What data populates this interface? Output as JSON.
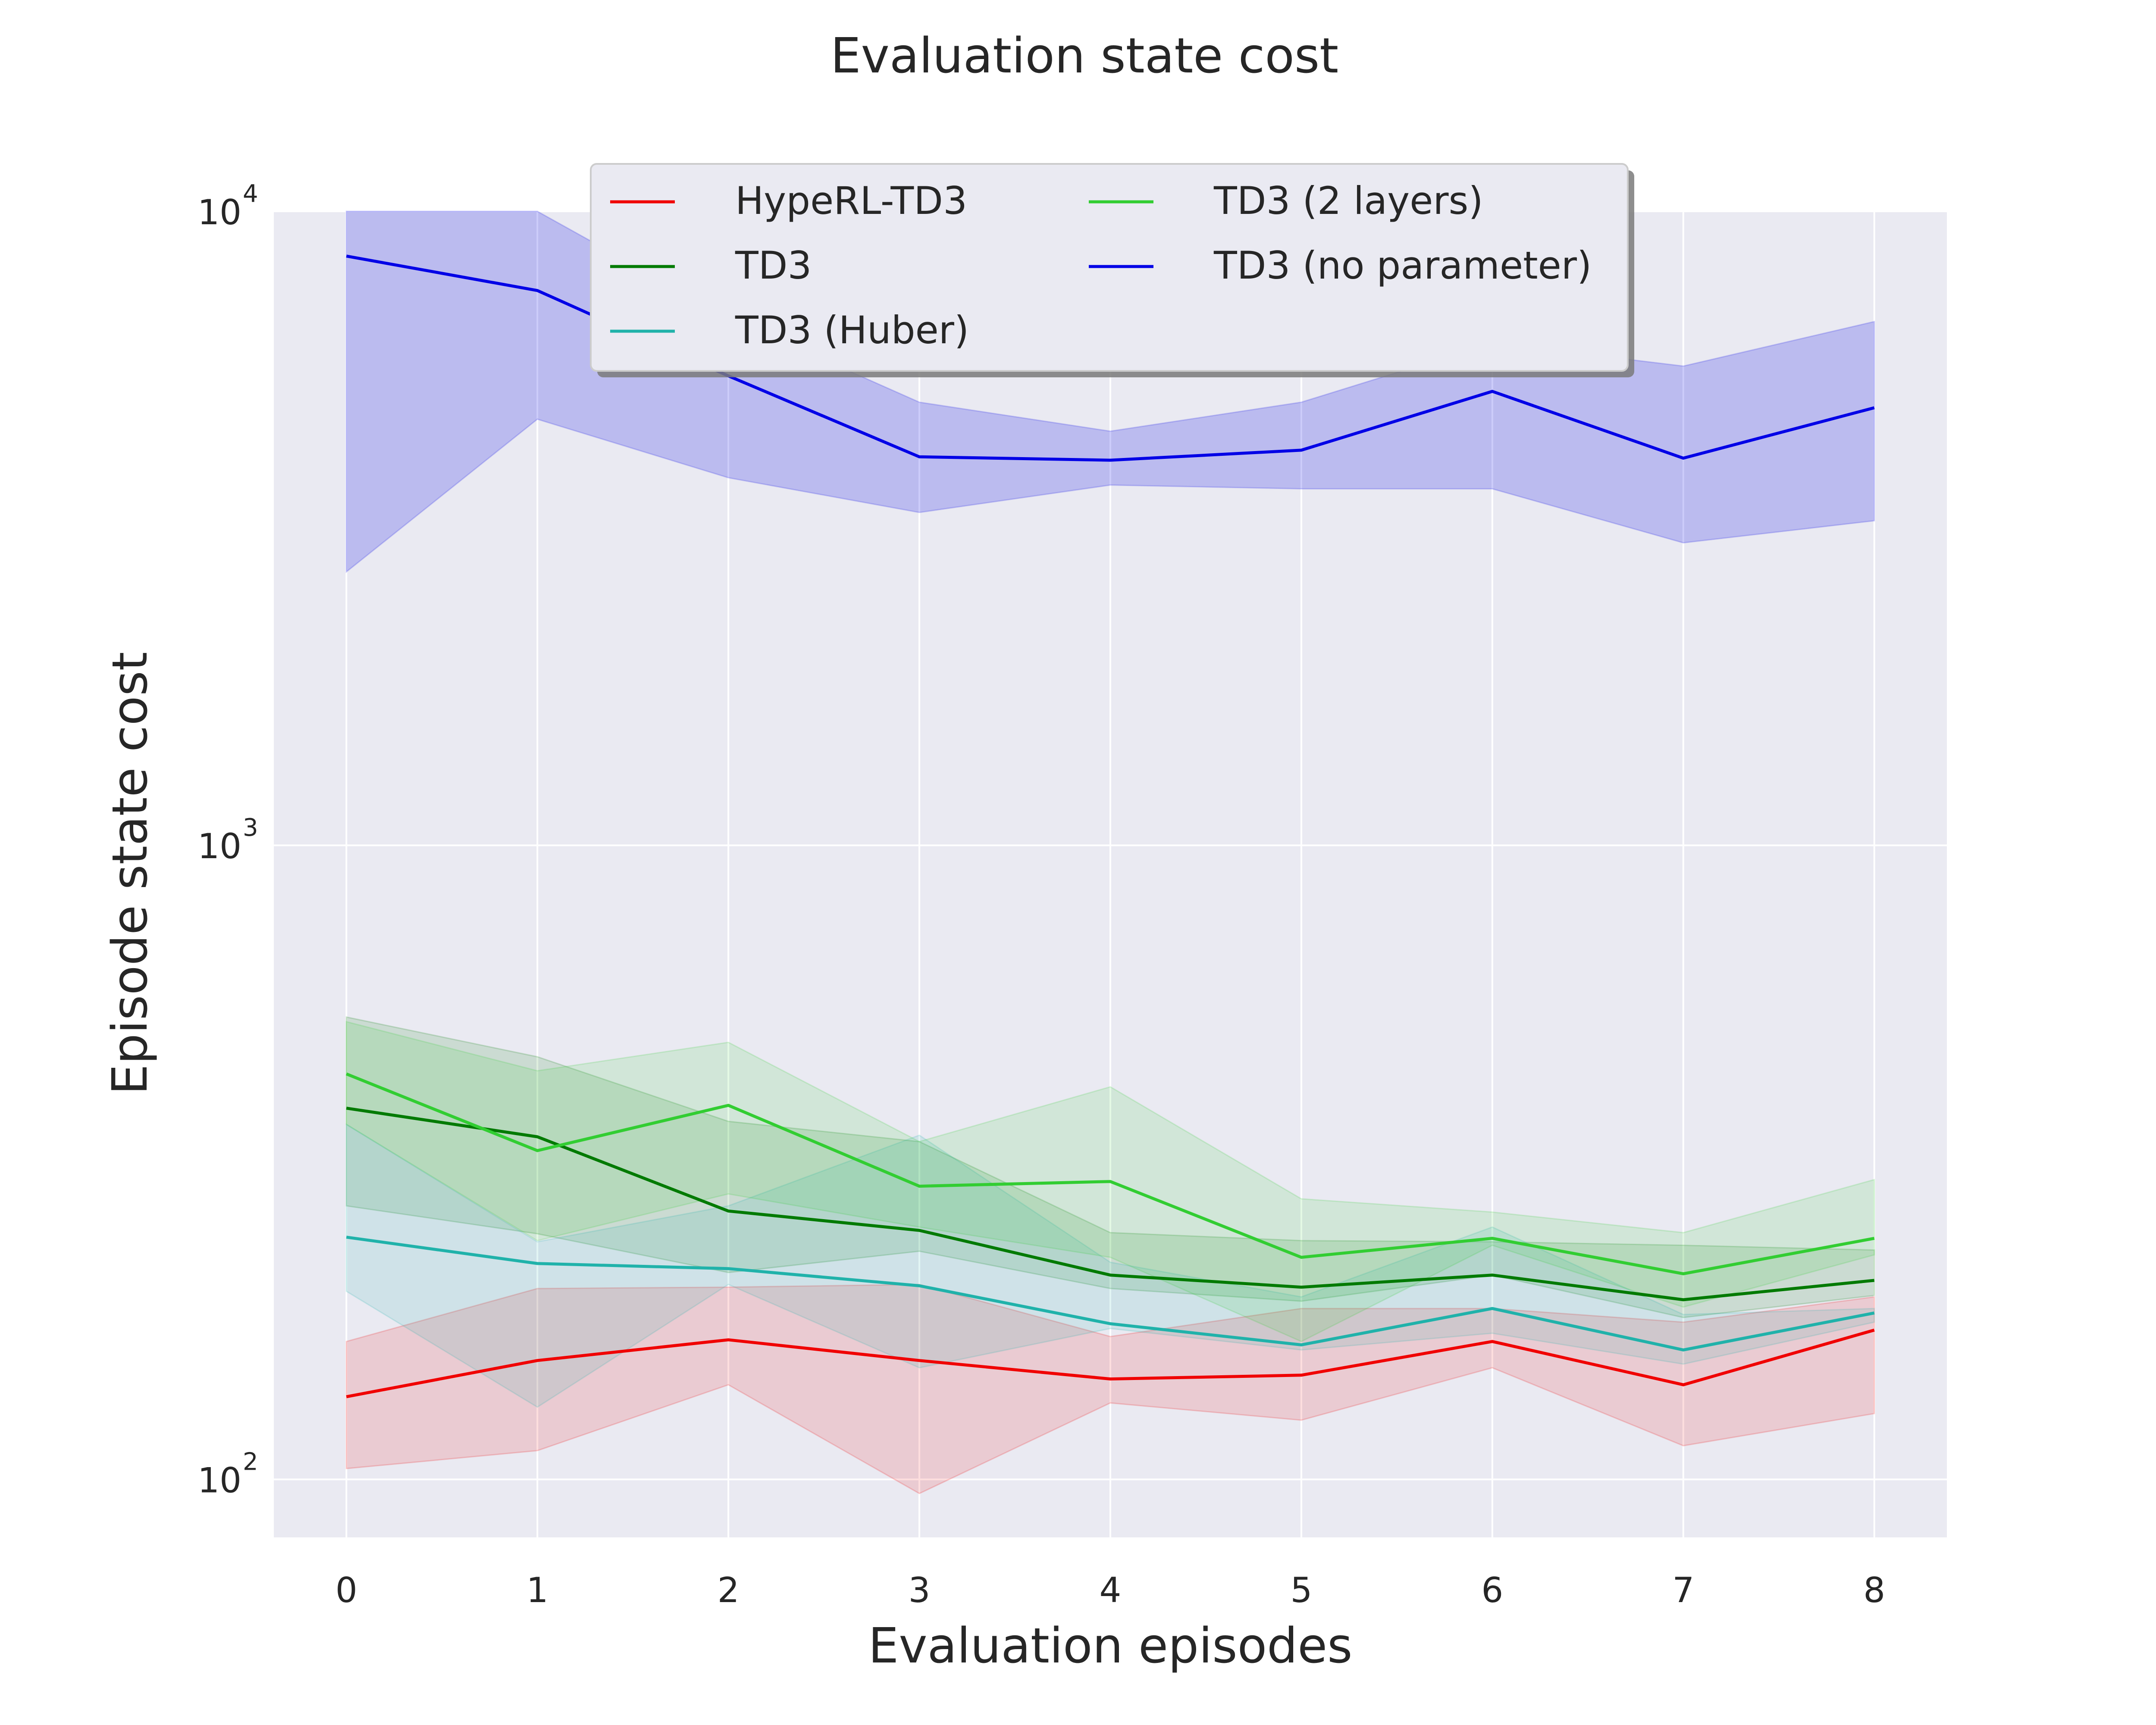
{
  "chart_data": {
    "type": "line",
    "title": "Evaluation state cost",
    "xlabel": "Evaluation episodes",
    "ylabel": "Episode state cost",
    "yscale": "log",
    "xlim": [
      -0.38,
      8.38
    ],
    "ylim": [
      81,
      10000
    ],
    "x_ticks": [
      "0",
      "1",
      "2",
      "3",
      "4",
      "5",
      "6",
      "7",
      "8"
    ],
    "y_ticks": [
      {
        "value": 100,
        "base": "10",
        "exp": "2"
      },
      {
        "value": 1000,
        "base": "10",
        "exp": "3"
      },
      {
        "value": 10000,
        "base": "10",
        "exp": "4"
      }
    ],
    "grid": true,
    "legend": {
      "location": "top-center",
      "ncol": 2
    },
    "x": [
      0,
      1,
      2,
      3,
      4,
      5,
      6,
      7,
      8
    ],
    "series": [
      {
        "name": "HypeRL-TD3",
        "color": "#f00000",
        "values": [
          135,
          154,
          166,
          154,
          144,
          146,
          165,
          141,
          172
        ],
        "lower": [
          104,
          111,
          141,
          95,
          132,
          124,
          150,
          113,
          127
        ],
        "upper": [
          165,
          200,
          201,
          203,
          168,
          186,
          186,
          177,
          194
        ]
      },
      {
        "name": "TD3",
        "color": "#007a00",
        "values": [
          385,
          347,
          265,
          247,
          210,
          201,
          210,
          192,
          206
        ],
        "lower": [
          270,
          244,
          212,
          229,
          200,
          191,
          210,
          180,
          195
        ],
        "upper": [
          536,
          464,
          367,
          341,
          245,
          238,
          237,
          234,
          230
        ]
      },
      {
        "name": "TD3 (Huber)",
        "color": "#20b2aa",
        "values": [
          241,
          219,
          215,
          202,
          176,
          163,
          186,
          160,
          183
        ],
        "lower": [
          198,
          130,
          203,
          150,
          173,
          160,
          170,
          152,
          177
        ],
        "upper": [
          363,
          237,
          270,
          349,
          220,
          194,
          250,
          182,
          186
        ]
      },
      {
        "name": "TD3 (2 layers)",
        "color": "#32cd32",
        "values": [
          436,
          330,
          389,
          290,
          295,
          224,
          240,
          211,
          240
        ],
        "lower": [
          363,
          238,
          282,
          250,
          224,
          165,
          234,
          187,
          226
        ],
        "upper": [
          527,
          441,
          489,
          341,
          416,
          277,
          264,
          245,
          297
        ]
      },
      {
        "name": "TD3 (no parameter)",
        "color": "#0000e6",
        "values": [
          8500,
          7500,
          5500,
          4100,
          4050,
          4200,
          5200,
          4080,
          4900
        ],
        "lower": [
          2700,
          4700,
          3800,
          3350,
          3700,
          3650,
          3650,
          3000,
          3250
        ],
        "upper": [
          10000,
          10000,
          6800,
          5000,
          4500,
          5000,
          6200,
          5700,
          6700
        ]
      }
    ]
  }
}
